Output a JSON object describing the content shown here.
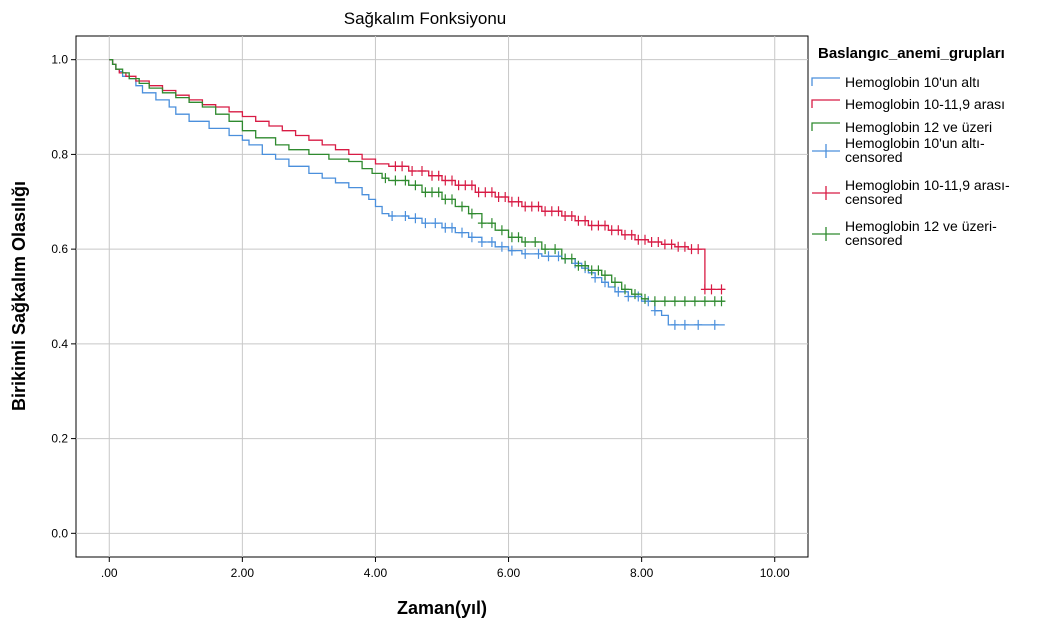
{
  "chart_data": {
    "type": "line",
    "title": "Sağkalım Fonksiyonu",
    "xlabel": "Zaman(yıl)",
    "ylabel": "Birikimli Sağkalım Olasılığı",
    "xlim": [
      -0.5,
      10.5
    ],
    "ylim": [
      -0.05,
      1.05
    ],
    "xticks": [
      0,
      2,
      4,
      6,
      8,
      10
    ],
    "xtick_labels": [
      ".00",
      "2.00",
      "4.00",
      "6.00",
      "8.00",
      "10.00"
    ],
    "yticks": [
      0,
      0.2,
      0.4,
      0.6,
      0.8,
      1.0
    ],
    "ytick_labels": [
      "0.0",
      "0.2",
      "0.4",
      "0.6",
      "0.8",
      "1.0"
    ],
    "grid": true,
    "legend": {
      "title": "Baslangıc_anemi_grupları",
      "position": "right",
      "entries": [
        {
          "label": "Hemoglobin 10'un altı",
          "style": "step",
          "color": "#4a8fdc"
        },
        {
          "label": "Hemoglobin 10-11,9 arası",
          "style": "step",
          "color": "#d81b44"
        },
        {
          "label": "Hemoglobin 12 ve üzeri",
          "style": "step",
          "color": "#2f8a2f"
        },
        {
          "label_lines": [
            "Hemoglobin 10'un altı-",
            "censored"
          ],
          "style": "censor",
          "color": "#4a8fdc"
        },
        {
          "label_lines": [
            "Hemoglobin 10-11,9 arası-",
            "censored"
          ],
          "style": "censor",
          "color": "#d81b44"
        },
        {
          "label_lines": [
            "Hemoglobin 12 ve üzeri-",
            "censored"
          ],
          "style": "censor",
          "color": "#2f8a2f"
        }
      ]
    },
    "series": [
      {
        "name": "Hemoglobin 10'un altı",
        "color": "#4a8fdc",
        "x": [
          0,
          0.05,
          0.1,
          0.15,
          0.2,
          0.3,
          0.4,
          0.5,
          0.7,
          0.9,
          1.0,
          1.2,
          1.5,
          1.8,
          2.0,
          2.1,
          2.3,
          2.5,
          2.7,
          3.0,
          3.2,
          3.4,
          3.6,
          3.8,
          3.9,
          4.0,
          4.1,
          4.2,
          4.5,
          4.7,
          5.0,
          5.2,
          5.4,
          5.6,
          5.8,
          6.0,
          6.2,
          6.5,
          6.8,
          7.0,
          7.1,
          7.2,
          7.3,
          7.4,
          7.5,
          7.6,
          7.8,
          8.0,
          8.2,
          8.3,
          8.4
        ],
        "y": [
          1.0,
          0.99,
          0.98,
          0.975,
          0.965,
          0.96,
          0.945,
          0.93,
          0.915,
          0.9,
          0.885,
          0.87,
          0.855,
          0.84,
          0.83,
          0.82,
          0.8,
          0.79,
          0.775,
          0.76,
          0.75,
          0.74,
          0.73,
          0.715,
          0.705,
          0.69,
          0.675,
          0.67,
          0.665,
          0.655,
          0.645,
          0.635,
          0.625,
          0.615,
          0.605,
          0.597,
          0.59,
          0.585,
          0.58,
          0.57,
          0.56,
          0.55,
          0.54,
          0.53,
          0.52,
          0.51,
          0.5,
          0.49,
          0.47,
          0.46,
          0.44
        ],
        "end_x": 9.25,
        "censored_x": [
          4.25,
          4.45,
          4.6,
          4.75,
          4.9,
          5.05,
          5.15,
          5.3,
          5.45,
          5.6,
          5.75,
          5.9,
          6.05,
          6.25,
          6.45,
          6.6,
          6.75,
          6.85,
          7.0,
          7.15,
          7.3,
          7.45,
          7.65,
          7.8,
          7.95,
          8.1,
          8.2,
          8.5,
          8.65,
          8.85,
          9.1
        ]
      },
      {
        "name": "Hemoglobin 10-11,9 arası",
        "color": "#d81b44",
        "x": [
          0,
          0.05,
          0.1,
          0.15,
          0.25,
          0.4,
          0.6,
          0.8,
          1.0,
          1.2,
          1.4,
          1.6,
          1.8,
          2.0,
          2.2,
          2.4,
          2.6,
          2.8,
          3.0,
          3.2,
          3.4,
          3.6,
          3.8,
          4.0,
          4.2,
          4.5,
          4.8,
          5.0,
          5.2,
          5.5,
          5.8,
          6.0,
          6.2,
          6.5,
          6.8,
          7.0,
          7.2,
          7.5,
          7.7,
          7.9,
          8.1,
          8.3,
          8.5,
          8.7,
          8.95
        ],
        "y": [
          1.0,
          0.99,
          0.98,
          0.972,
          0.965,
          0.955,
          0.945,
          0.935,
          0.925,
          0.915,
          0.905,
          0.9,
          0.89,
          0.88,
          0.87,
          0.86,
          0.85,
          0.84,
          0.83,
          0.82,
          0.81,
          0.8,
          0.79,
          0.78,
          0.775,
          0.765,
          0.755,
          0.745,
          0.735,
          0.72,
          0.71,
          0.7,
          0.69,
          0.68,
          0.67,
          0.66,
          0.65,
          0.64,
          0.63,
          0.62,
          0.615,
          0.61,
          0.605,
          0.6,
          0.515
        ],
        "end_x": 9.25,
        "censored_x": [
          4.3,
          4.4,
          4.55,
          4.7,
          4.85,
          4.95,
          5.05,
          5.15,
          5.25,
          5.35,
          5.45,
          5.55,
          5.65,
          5.75,
          5.85,
          5.95,
          6.05,
          6.15,
          6.25,
          6.35,
          6.45,
          6.55,
          6.65,
          6.75,
          6.85,
          6.95,
          7.05,
          7.15,
          7.25,
          7.35,
          7.45,
          7.55,
          7.65,
          7.75,
          7.85,
          7.95,
          8.05,
          8.15,
          8.25,
          8.35,
          8.45,
          8.55,
          8.65,
          8.75,
          8.85,
          8.95,
          9.05,
          9.2
        ]
      },
      {
        "name": "Hemoglobin 12 ve üzeri",
        "color": "#2f8a2f",
        "x": [
          0,
          0.05,
          0.1,
          0.2,
          0.3,
          0.45,
          0.6,
          0.8,
          1.0,
          1.2,
          1.4,
          1.6,
          1.8,
          2.0,
          2.2,
          2.5,
          2.7,
          3.0,
          3.3,
          3.6,
          3.8,
          3.95,
          4.1,
          4.2,
          4.5,
          4.7,
          5.0,
          5.2,
          5.4,
          5.6,
          5.8,
          6.0,
          6.2,
          6.5,
          6.8,
          7.0,
          7.2,
          7.4,
          7.55,
          7.7,
          7.85,
          8.0,
          8.1
        ],
        "y": [
          1.0,
          0.99,
          0.98,
          0.972,
          0.96,
          0.95,
          0.94,
          0.93,
          0.92,
          0.91,
          0.9,
          0.885,
          0.87,
          0.85,
          0.835,
          0.82,
          0.81,
          0.8,
          0.79,
          0.785,
          0.77,
          0.76,
          0.75,
          0.745,
          0.735,
          0.72,
          0.705,
          0.69,
          0.675,
          0.655,
          0.64,
          0.625,
          0.615,
          0.6,
          0.58,
          0.565,
          0.555,
          0.545,
          0.53,
          0.515,
          0.505,
          0.495,
          0.49
        ],
        "end_x": 9.25,
        "censored_x": [
          4.15,
          4.3,
          4.45,
          4.6,
          4.75,
          4.85,
          4.95,
          5.05,
          5.15,
          5.3,
          5.45,
          5.6,
          5.75,
          5.9,
          6.05,
          6.15,
          6.25,
          6.4,
          6.55,
          6.7,
          6.85,
          6.95,
          7.05,
          7.15,
          7.25,
          7.35,
          7.45,
          7.6,
          7.75,
          7.9,
          8.05,
          8.2,
          8.35,
          8.5,
          8.65,
          8.8,
          8.95,
          9.1,
          9.2
        ]
      }
    ]
  }
}
